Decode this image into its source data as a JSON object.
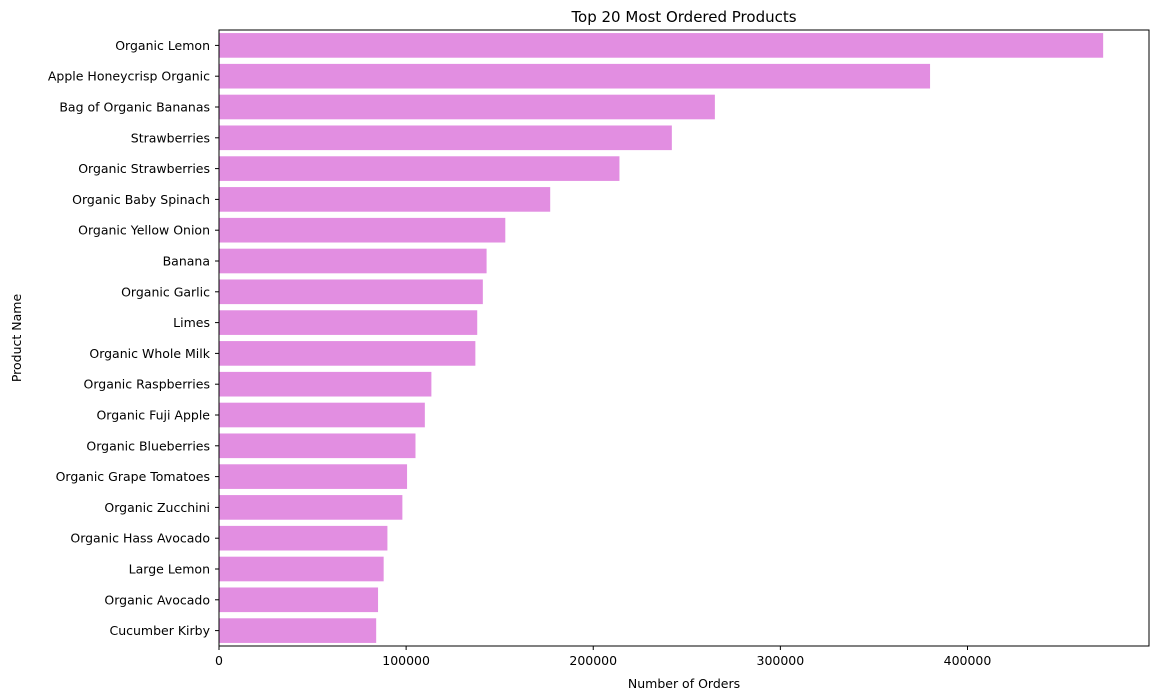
{
  "chart_data": {
    "type": "bar",
    "orientation": "horizontal",
    "title": "Top 20 Most Ordered Products",
    "xlabel": "Number of Orders",
    "ylabel": "Product Name",
    "xlim": [
      0,
      497000
    ],
    "xticks": [
      0,
      100000,
      200000,
      300000,
      400000
    ],
    "xtick_labels": [
      "0",
      "100000",
      "200000",
      "300000",
      "400000"
    ],
    "grid": false,
    "bar_color": "#e28ee1",
    "categories": [
      "Organic Lemon",
      "Apple Honeycrisp Organic",
      "Bag of Organic Bananas",
      "Strawberries",
      "Organic Strawberries",
      "Organic Baby Spinach",
      "Organic Yellow Onion",
      "Banana",
      "Organic Garlic",
      "Limes",
      "Organic Whole Milk",
      "Organic Raspberries",
      "Organic Fuji Apple",
      "Organic Blueberries",
      "Organic Grape Tomatoes",
      "Organic Zucchini",
      "Organic Hass Avocado",
      "Large Lemon",
      "Organic Avocado",
      "Cucumber Kirby"
    ],
    "values": [
      472500,
      380000,
      265000,
      242000,
      214000,
      177000,
      153000,
      143000,
      141000,
      138000,
      137000,
      113500,
      110000,
      105000,
      100500,
      98000,
      90000,
      88000,
      85000,
      84000
    ]
  }
}
